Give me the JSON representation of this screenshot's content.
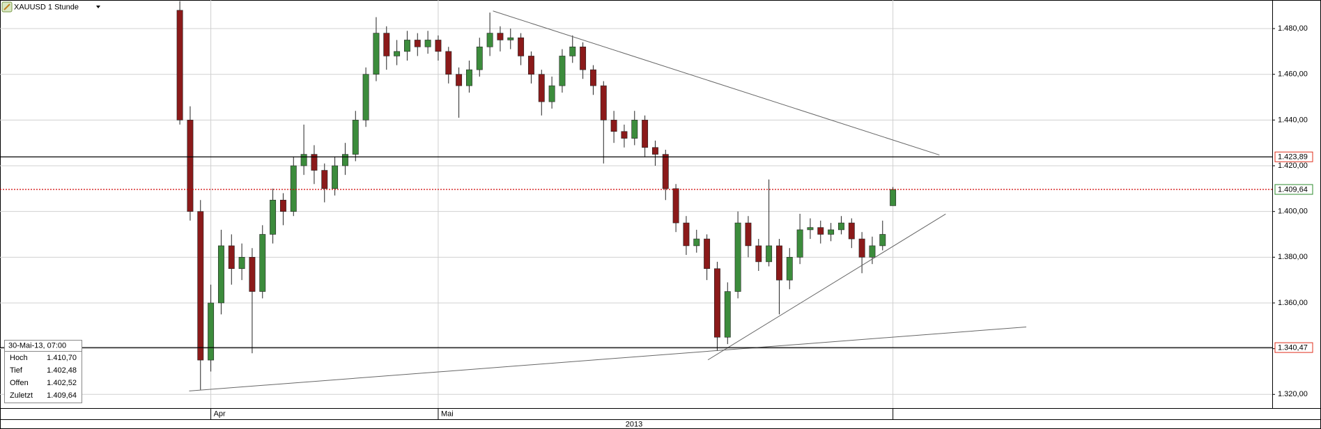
{
  "chart_data": {
    "type": "candlestick",
    "title": "XAUUSD 1 Stunde",
    "values": [
      [
        1488,
        1492,
        1438,
        1440
      ],
      [
        1440,
        1446,
        1396,
        1400
      ],
      [
        1400,
        1405,
        1322,
        1335
      ],
      [
        1335,
        1368,
        1330,
        1360
      ],
      [
        1360,
        1392,
        1355,
        1385
      ],
      [
        1385,
        1390,
        1368,
        1375
      ],
      [
        1375,
        1386,
        1370,
        1380
      ],
      [
        1380,
        1384,
        1338,
        1365
      ],
      [
        1365,
        1394,
        1362,
        1390
      ],
      [
        1390,
        1410,
        1386,
        1405
      ],
      [
        1405,
        1408,
        1394,
        1400
      ],
      [
        1400,
        1424,
        1398,
        1420
      ],
      [
        1420,
        1438,
        1416,
        1425
      ],
      [
        1425,
        1429,
        1412,
        1418
      ],
      [
        1418,
        1421,
        1404,
        1410
      ],
      [
        1410,
        1424,
        1407,
        1420
      ],
      [
        1420,
        1430,
        1416,
        1425
      ],
      [
        1425,
        1444,
        1422,
        1440
      ],
      [
        1440,
        1463,
        1437,
        1460
      ],
      [
        1460,
        1485,
        1457,
        1478
      ],
      [
        1478,
        1481,
        1462,
        1468
      ],
      [
        1468,
        1475,
        1464,
        1470
      ],
      [
        1470,
        1479,
        1466,
        1475
      ],
      [
        1475,
        1478,
        1468,
        1472
      ],
      [
        1472,
        1479,
        1469,
        1475
      ],
      [
        1475,
        1477,
        1466,
        1470
      ],
      [
        1470,
        1472,
        1456,
        1460
      ],
      [
        1460,
        1463,
        1441,
        1455
      ],
      [
        1455,
        1466,
        1452,
        1462
      ],
      [
        1462,
        1476,
        1459,
        1472
      ],
      [
        1472,
        1487,
        1468,
        1478
      ],
      [
        1478,
        1481,
        1470,
        1475
      ],
      [
        1475,
        1480,
        1471,
        1476
      ],
      [
        1476,
        1478,
        1464,
        1468
      ],
      [
        1468,
        1470,
        1456,
        1460
      ],
      [
        1460,
        1462,
        1442,
        1448
      ],
      [
        1448,
        1459,
        1445,
        1455
      ],
      [
        1455,
        1471,
        1452,
        1468
      ],
      [
        1468,
        1477,
        1465,
        1472
      ],
      [
        1472,
        1474,
        1458,
        1462
      ],
      [
        1462,
        1464,
        1451,
        1455
      ],
      [
        1455,
        1457,
        1421,
        1440
      ],
      [
        1440,
        1444,
        1430,
        1435
      ],
      [
        1435,
        1438,
        1428,
        1432
      ],
      [
        1432,
        1444,
        1429,
        1440
      ],
      [
        1440,
        1442,
        1424,
        1428
      ],
      [
        1428,
        1431,
        1420,
        1425
      ],
      [
        1425,
        1427,
        1405,
        1410
      ],
      [
        1410,
        1412,
        1391,
        1395
      ],
      [
        1395,
        1398,
        1381,
        1385
      ],
      [
        1385,
        1392,
        1382,
        1388
      ],
      [
        1388,
        1390,
        1370,
        1375
      ],
      [
        1375,
        1378,
        1339,
        1345
      ],
      [
        1345,
        1369,
        1342,
        1365
      ],
      [
        1365,
        1400,
        1362,
        1395
      ],
      [
        1395,
        1398,
        1380,
        1385
      ],
      [
        1385,
        1388,
        1374,
        1378
      ],
      [
        1378,
        1414,
        1376,
        1385
      ],
      [
        1385,
        1388,
        1355,
        1370
      ],
      [
        1370,
        1384,
        1366,
        1380
      ],
      [
        1380,
        1399,
        1377,
        1392
      ],
      [
        1392,
        1397,
        1388,
        1393
      ],
      [
        1393,
        1396,
        1386,
        1390
      ],
      [
        1390,
        1395,
        1387,
        1392
      ],
      [
        1392,
        1398,
        1390,
        1395
      ],
      [
        1395,
        1397,
        1384,
        1388
      ],
      [
        1388,
        1391,
        1373,
        1380
      ],
      [
        1380,
        1389,
        1377,
        1385
      ],
      [
        1385,
        1396,
        1383,
        1390
      ],
      [
        1402.52,
        1410.7,
        1402.48,
        1409.64
      ]
    ],
    "up_color": "#3c8c3c",
    "down_color": "#8b1a1a",
    "xlim": [
      -17.4,
      105.7
    ],
    "xticks": [
      {
        "value": 3.0,
        "label": "Apr"
      },
      {
        "value": 25.0,
        "label": "Mai"
      },
      {
        "value": 69.0,
        "label": null
      }
    ],
    "ylim": [
      1314,
      1492.5
    ],
    "yticks": [
      {
        "value": 1320,
        "label": "1.320,00"
      },
      {
        "value": 1340,
        "label": "1.340,00"
      },
      {
        "value": 1360,
        "label": "1.360,00"
      },
      {
        "value": 1380,
        "label": "1.380,00"
      },
      {
        "value": 1400,
        "label": "1.400,00"
      },
      {
        "value": 1420,
        "label": "1.420,00"
      },
      {
        "value": 1440,
        "label": "1.440,00"
      },
      {
        "value": 1460,
        "label": "1.460,00"
      },
      {
        "value": 1480,
        "label": "1.480,00"
      }
    ],
    "grid": true,
    "price_lines": [
      {
        "value": 1423.89,
        "label": "1.423,89",
        "color": "#000000",
        "style": "solid",
        "box_color": "#e0301e"
      },
      {
        "value": 1409.64,
        "label": "1.409,64",
        "color": "#d00000",
        "style": "dotted",
        "box_color": "#2e8b2e"
      },
      {
        "value": 1340.47,
        "label": "1.340,47",
        "color": "#000000",
        "style": "solid",
        "box_color": "#e0301e"
      }
    ],
    "trendlines": [
      {
        "x": [
          30.3,
          73.5
        ],
        "y": [
          1487.7,
          1424.7
        ]
      },
      {
        "x": [
          0.9,
          81.9
        ],
        "y": [
          1321.5,
          1349.5
        ]
      },
      {
        "x": [
          51.1,
          74.1
        ],
        "y": [
          1335.1,
          1398.9
        ]
      }
    ],
    "year_label": "2013",
    "info_box": {
      "title": "30-Mai-13, 07:00",
      "rows": [
        {
          "label": "Hoch",
          "value": "1.410,70"
        },
        {
          "label": "Tief",
          "value": "1.402,48"
        },
        {
          "label": "Offen",
          "value": "1.402,52"
        },
        {
          "label": "Zuletzt",
          "value": "1.409,64"
        }
      ]
    }
  }
}
